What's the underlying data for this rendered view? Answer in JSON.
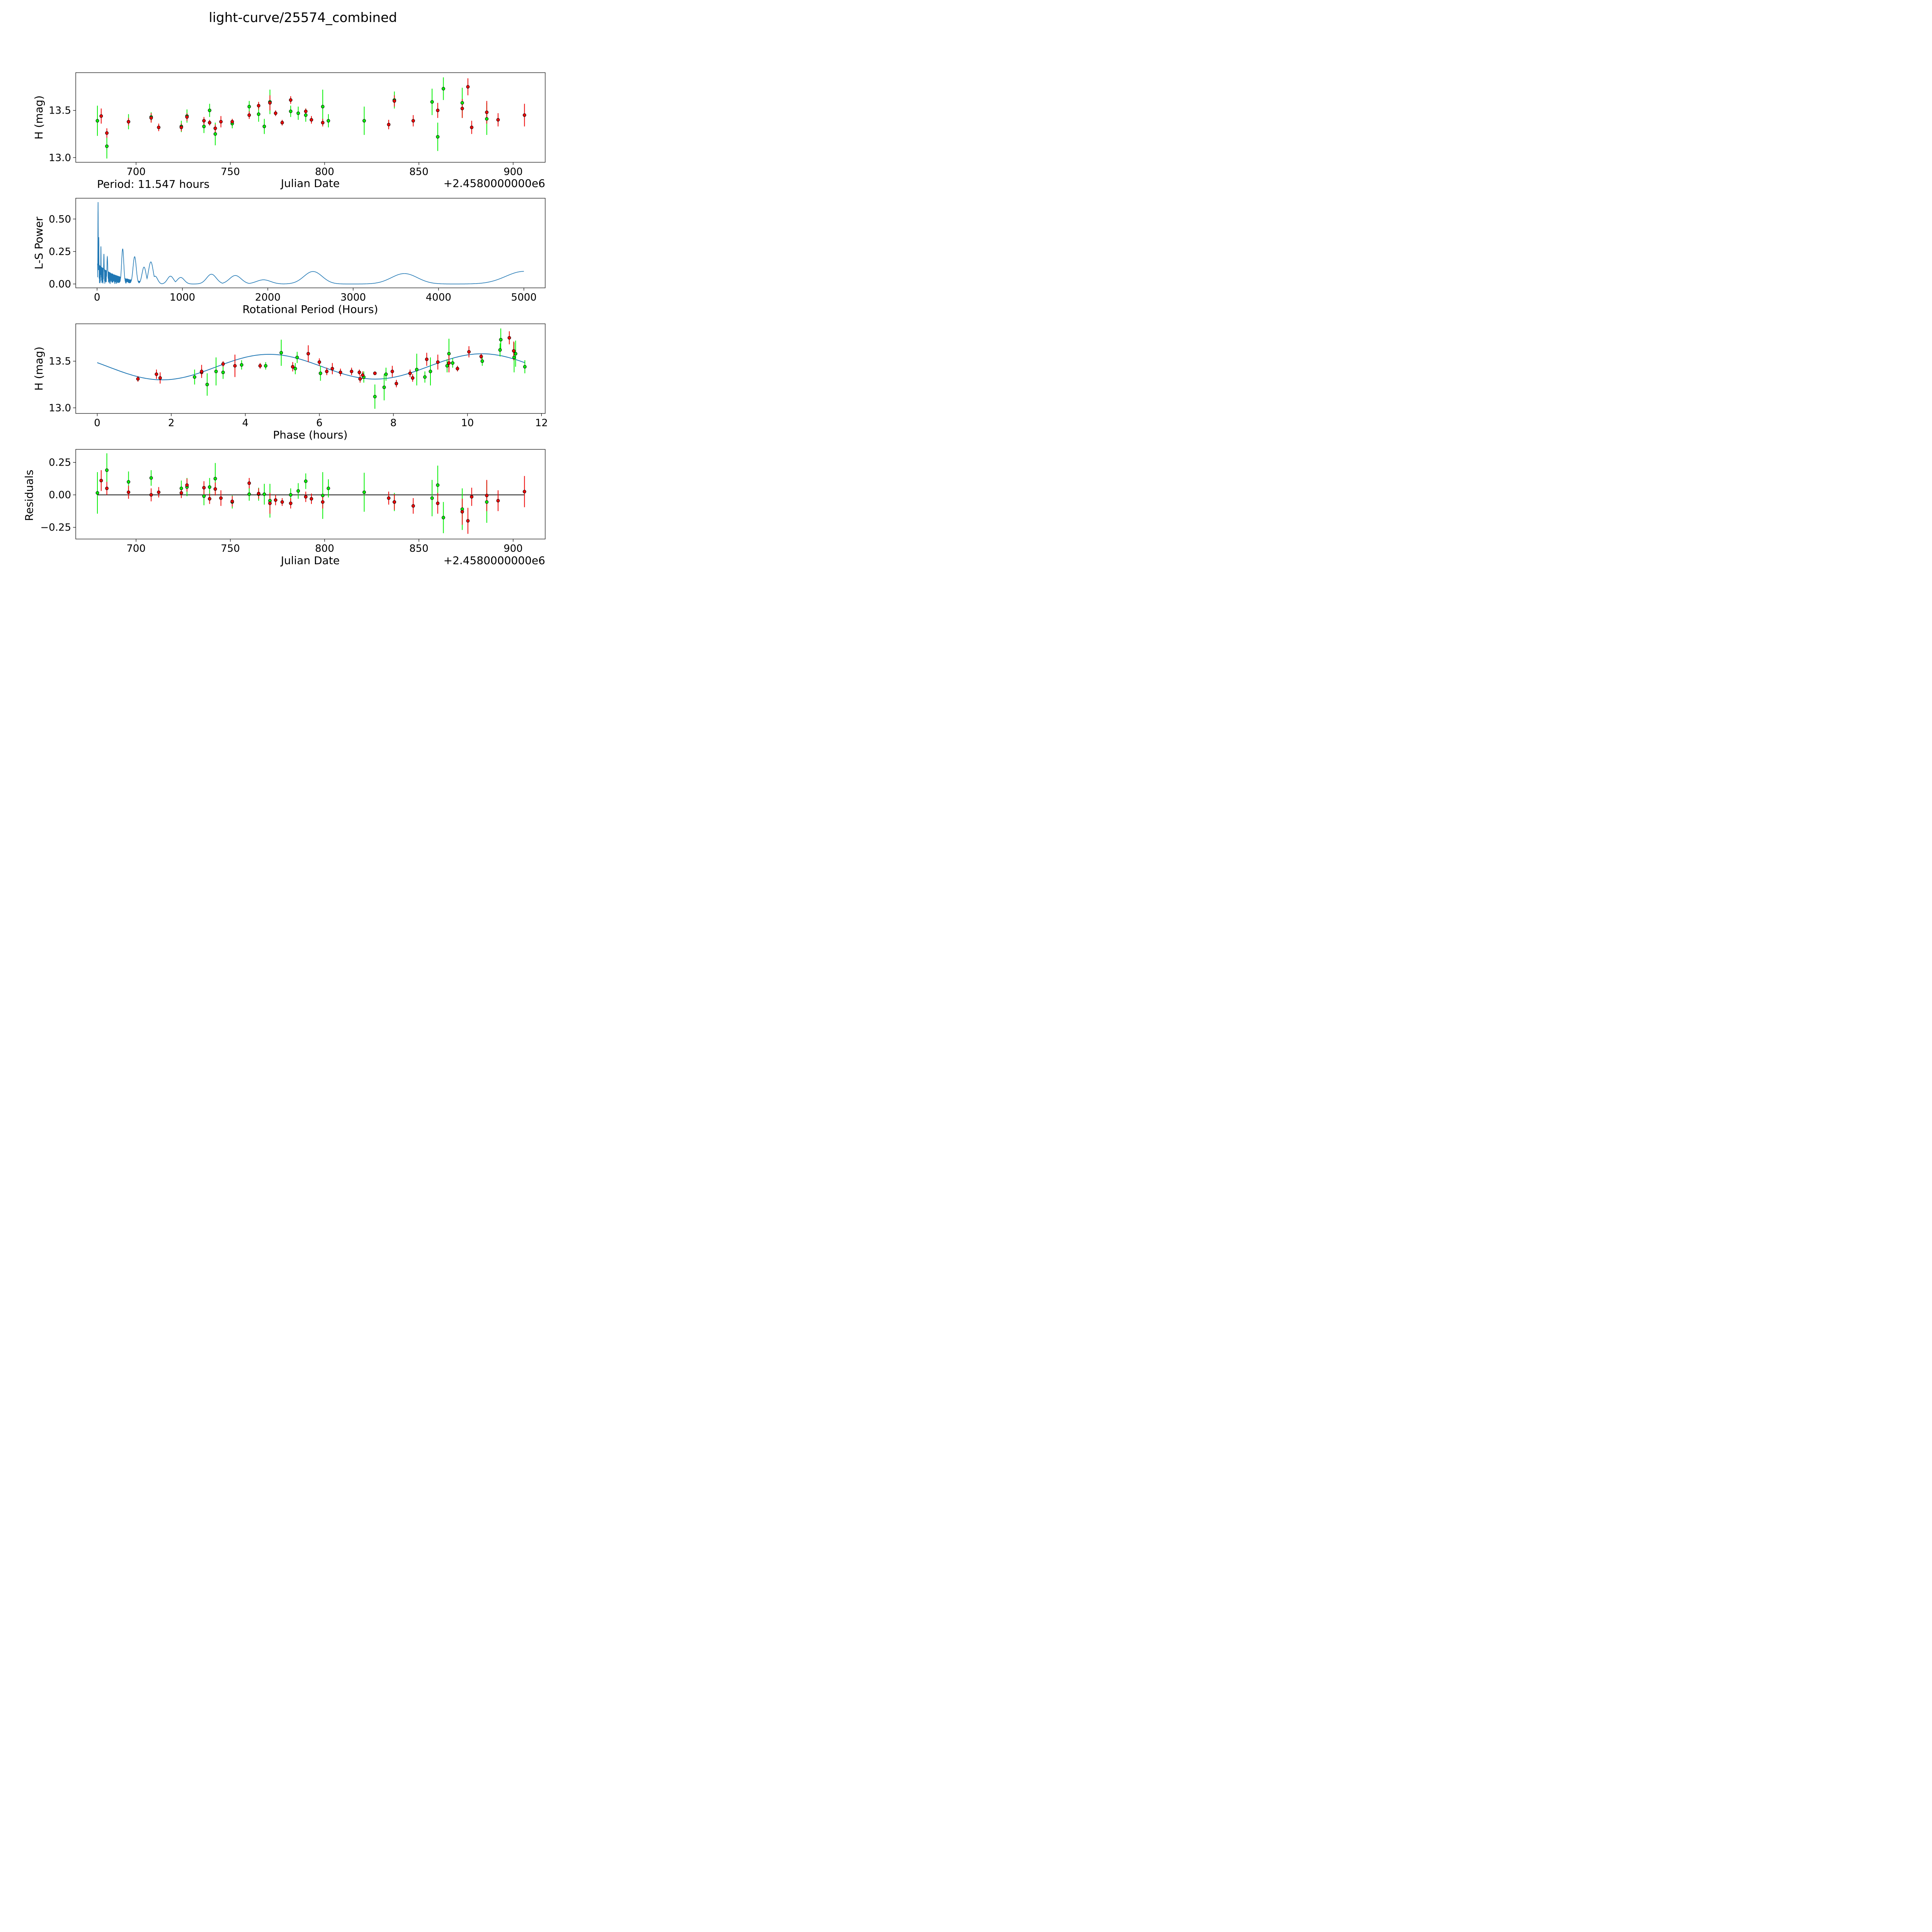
{
  "title": "light-curve/25574_combined",
  "colors": {
    "green": "#00ee00",
    "red": "#ee0000",
    "line": "#1f77b4",
    "zero_line": "#000000"
  },
  "chart_data": [
    {
      "type": "scatter",
      "name": "light-curve",
      "title": "",
      "xlabel": "Julian Date",
      "ylabel": "H (mag)",
      "offset_text": "+2.4580000000e6",
      "xlim": [
        668,
        917
      ],
      "ylim": [
        12.95,
        13.9
      ],
      "xticks": [
        700,
        750,
        800,
        850,
        900
      ],
      "yticks": [
        13.0,
        13.5
      ],
      "ytick_labels": [
        "13.0",
        "13.5"
      ],
      "series": [
        {
          "name": "green",
          "x": [
            679.5,
            684.5,
            696,
            708,
            724,
            727,
            736,
            739,
            742,
            751,
            760,
            765,
            768,
            771,
            782,
            786,
            790,
            799,
            802,
            821,
            837,
            857,
            860,
            863,
            873,
            886
          ],
          "y": [
            13.39,
            13.12,
            13.38,
            13.43,
            13.33,
            13.44,
            13.33,
            13.5,
            13.25,
            13.36,
            13.54,
            13.46,
            13.33,
            13.59,
            13.49,
            13.47,
            13.45,
            13.54,
            13.39,
            13.39,
            13.61,
            13.59,
            13.22,
            13.73,
            13.58,
            13.41
          ],
          "err": [
            0.16,
            0.13,
            0.08,
            0.05,
            0.06,
            0.07,
            0.07,
            0.07,
            0.12,
            0.05,
            0.06,
            0.08,
            0.08,
            0.13,
            0.06,
            0.07,
            0.07,
            0.18,
            0.07,
            0.15,
            0.09,
            0.14,
            0.15,
            0.12,
            0.16,
            0.17
          ]
        },
        {
          "name": "red",
          "x": [
            681.5,
            684.5,
            696,
            708,
            712,
            724,
            727,
            736,
            739,
            742,
            745,
            751,
            760,
            765,
            771,
            774,
            777.5,
            782,
            790,
            793,
            799,
            834,
            837,
            847,
            860,
            873,
            876,
            878,
            886,
            892,
            906
          ],
          "y": [
            13.44,
            13.26,
            13.38,
            13.42,
            13.32,
            13.32,
            13.43,
            13.39,
            13.37,
            13.31,
            13.38,
            13.38,
            13.45,
            13.55,
            13.58,
            13.47,
            13.37,
            13.61,
            13.49,
            13.4,
            13.37,
            13.35,
            13.6,
            13.39,
            13.5,
            13.52,
            13.75,
            13.32,
            13.48,
            13.4,
            13.45
          ],
          "err": [
            0.08,
            0.05,
            0.04,
            0.05,
            0.04,
            0.04,
            0.04,
            0.04,
            0.03,
            0.04,
            0.06,
            0.03,
            0.04,
            0.04,
            0.08,
            0.03,
            0.03,
            0.04,
            0.03,
            0.04,
            0.04,
            0.05,
            0.06,
            0.06,
            0.08,
            0.1,
            0.09,
            0.07,
            0.12,
            0.07,
            0.12
          ]
        }
      ]
    },
    {
      "type": "line",
      "name": "periodogram",
      "title": "Period: 11.547 hours",
      "xlabel": "Rotational Period (Hours)",
      "ylabel": "L-S Power",
      "xlim": [
        -250,
        5250
      ],
      "ylim": [
        -0.03,
        0.66
      ],
      "xticks": [
        0,
        1000,
        2000,
        3000,
        4000,
        5000
      ],
      "yticks": [
        0.0,
        0.25,
        0.5
      ],
      "ytick_labels": [
        "0.00",
        "0.25",
        "0.50"
      ],
      "peaks": [
        {
          "period": 11.5,
          "power": 0.63
        },
        {
          "period": 20,
          "power": 0.36
        },
        {
          "period": 45,
          "power": 0.29
        },
        {
          "period": 80,
          "power": 0.23
        },
        {
          "period": 120,
          "power": 0.21
        },
        {
          "period": 300,
          "power": 0.27
        },
        {
          "period": 440,
          "power": 0.21
        },
        {
          "period": 550,
          "power": 0.13
        },
        {
          "period": 630,
          "power": 0.17
        },
        {
          "period": 680,
          "power": 0.06
        },
        {
          "period": 860,
          "power": 0.06
        },
        {
          "period": 980,
          "power": 0.05
        },
        {
          "period": 1340,
          "power": 0.075
        },
        {
          "period": 1620,
          "power": 0.065
        },
        {
          "period": 1950,
          "power": 0.032
        },
        {
          "period": 2530,
          "power": 0.096
        },
        {
          "period": 3600,
          "power": 0.08
        },
        {
          "period": 5000,
          "power": 0.097
        }
      ]
    },
    {
      "type": "scatter",
      "name": "phased",
      "title": "",
      "xlabel": "Phase (hours)",
      "ylabel": "H (mag)",
      "xlim": [
        -0.58,
        12.1
      ],
      "ylim": [
        12.94,
        13.9
      ],
      "xticks": [
        0,
        2,
        4,
        6,
        8,
        10,
        12
      ],
      "yticks": [
        13.0,
        13.5
      ],
      "ytick_labels": [
        "13.0",
        "13.5"
      ],
      "model": {
        "period_hours": 11.547,
        "mean": 13.44,
        "amp1": 0.005,
        "amp2": 0.136,
        "phase_shift": 1.9
      },
      "series": [
        {
          "name": "green",
          "x": [
            2.63,
            2.97,
            3.21,
            3.4,
            3.9,
            4.55,
            4.97,
            5.35,
            5.4,
            6.03,
            7.2,
            7.5,
            7.75,
            7.8,
            8.63,
            8.85,
            9.0,
            9.45,
            9.5,
            9.6,
            10.4,
            10.88,
            10.9,
            11.26,
            11.3,
            11.55
          ],
          "y": [
            13.33,
            13.25,
            13.39,
            13.38,
            13.46,
            13.45,
            13.59,
            13.42,
            13.54,
            13.37,
            13.33,
            13.12,
            13.22,
            13.36,
            13.41,
            13.33,
            13.39,
            13.45,
            13.58,
            13.48,
            13.5,
            13.62,
            13.73,
            13.54,
            13.58,
            13.44
          ],
          "err": [
            0.08,
            0.12,
            0.15,
            0.07,
            0.05,
            0.04,
            0.14,
            0.06,
            0.06,
            0.08,
            0.06,
            0.13,
            0.14,
            0.07,
            0.17,
            0.06,
            0.15,
            0.07,
            0.16,
            0.05,
            0.05,
            0.07,
            0.12,
            0.16,
            0.14,
            0.07
          ]
        },
        {
          "name": "red",
          "x": [
            1.1,
            1.6,
            1.7,
            2.82,
            2.82,
            3.4,
            3.72,
            4.4,
            5.28,
            5.7,
            6.0,
            6.2,
            6.35,
            6.57,
            6.87,
            7.08,
            7.1,
            7.17,
            7.5,
            7.97,
            8.08,
            8.45,
            8.52,
            8.9,
            9.2,
            9.5,
            9.73,
            10.04,
            10.37,
            11.13,
            11.25
          ],
          "y": [
            13.31,
            13.36,
            13.32,
            13.38,
            13.39,
            13.47,
            13.45,
            13.45,
            13.44,
            13.58,
            13.49,
            13.39,
            13.42,
            13.38,
            13.39,
            13.38,
            13.31,
            13.35,
            13.37,
            13.39,
            13.26,
            13.37,
            13.32,
            13.52,
            13.49,
            13.48,
            13.42,
            13.6,
            13.55,
            13.75,
            13.61
          ],
          "err": [
            0.03,
            0.05,
            0.06,
            0.04,
            0.07,
            0.03,
            0.12,
            0.03,
            0.05,
            0.09,
            0.04,
            0.04,
            0.06,
            0.04,
            0.04,
            0.03,
            0.04,
            0.04,
            0.02,
            0.06,
            0.04,
            0.04,
            0.04,
            0.07,
            0.08,
            0.1,
            0.03,
            0.06,
            0.03,
            0.07,
            0.1
          ]
        }
      ]
    },
    {
      "type": "scatter",
      "name": "residuals",
      "title": "",
      "xlabel": "Julian Date",
      "ylabel": "Residuals",
      "offset_text": "+2.4580000000e6",
      "xlim": [
        668,
        917
      ],
      "ylim": [
        -0.34,
        0.35
      ],
      "xticks": [
        700,
        750,
        800,
        850,
        900
      ],
      "yticks": [
        -0.25,
        0.0,
        0.25
      ],
      "ytick_labels": [
        "−0.25",
        "0.00",
        "0.25"
      ],
      "series": [
        {
          "name": "green",
          "x": [
            679.5,
            684.5,
            696,
            708,
            724,
            727,
            736,
            739,
            742,
            751,
            760,
            765,
            768,
            771,
            782,
            786,
            790,
            799,
            802,
            821,
            837,
            857,
            860,
            863,
            873,
            886
          ],
          "y": [
            0.015,
            0.19,
            0.1,
            0.13,
            0.05,
            0.06,
            -0.01,
            0.06,
            0.125,
            -0.055,
            0.005,
            0.005,
            0.005,
            -0.045,
            0.0,
            0.03,
            0.105,
            -0.005,
            0.05,
            0.02,
            -0.055,
            -0.025,
            0.075,
            -0.175,
            -0.11,
            -0.055
          ],
          "err": [
            0.16,
            0.13,
            0.08,
            0.06,
            0.06,
            0.07,
            0.07,
            0.07,
            0.12,
            0.05,
            0.05,
            0.05,
            0.08,
            0.13,
            0.05,
            0.06,
            0.06,
            0.18,
            0.07,
            0.15,
            0.07,
            0.14,
            0.15,
            0.12,
            0.16,
            0.16
          ]
        },
        {
          "name": "red",
          "x": [
            681.5,
            684.5,
            696,
            708,
            712,
            724,
            727,
            736,
            739,
            742,
            745,
            751,
            760,
            765,
            771,
            774,
            777.5,
            782,
            790,
            793,
            799,
            834,
            837,
            847,
            860,
            873,
            876,
            878,
            886,
            892,
            906
          ],
          "y": [
            0.11,
            0.05,
            0.02,
            0.0,
            0.02,
            0.015,
            0.075,
            0.055,
            -0.03,
            0.045,
            -0.025,
            -0.05,
            0.09,
            0.01,
            -0.065,
            -0.04,
            -0.055,
            -0.065,
            -0.015,
            -0.03,
            -0.055,
            -0.025,
            -0.055,
            -0.085,
            -0.065,
            -0.13,
            -0.2,
            -0.015,
            -0.005,
            -0.045,
            0.025
          ],
          "err": [
            0.08,
            0.05,
            0.05,
            0.05,
            0.04,
            0.04,
            0.05,
            0.05,
            0.04,
            0.05,
            0.06,
            0.04,
            0.04,
            0.04,
            0.08,
            0.04,
            0.03,
            0.04,
            0.04,
            0.04,
            0.05,
            0.05,
            0.06,
            0.06,
            0.08,
            0.1,
            0.1,
            0.07,
            0.12,
            0.08,
            0.12
          ]
        }
      ],
      "zero_line": 0
    }
  ]
}
